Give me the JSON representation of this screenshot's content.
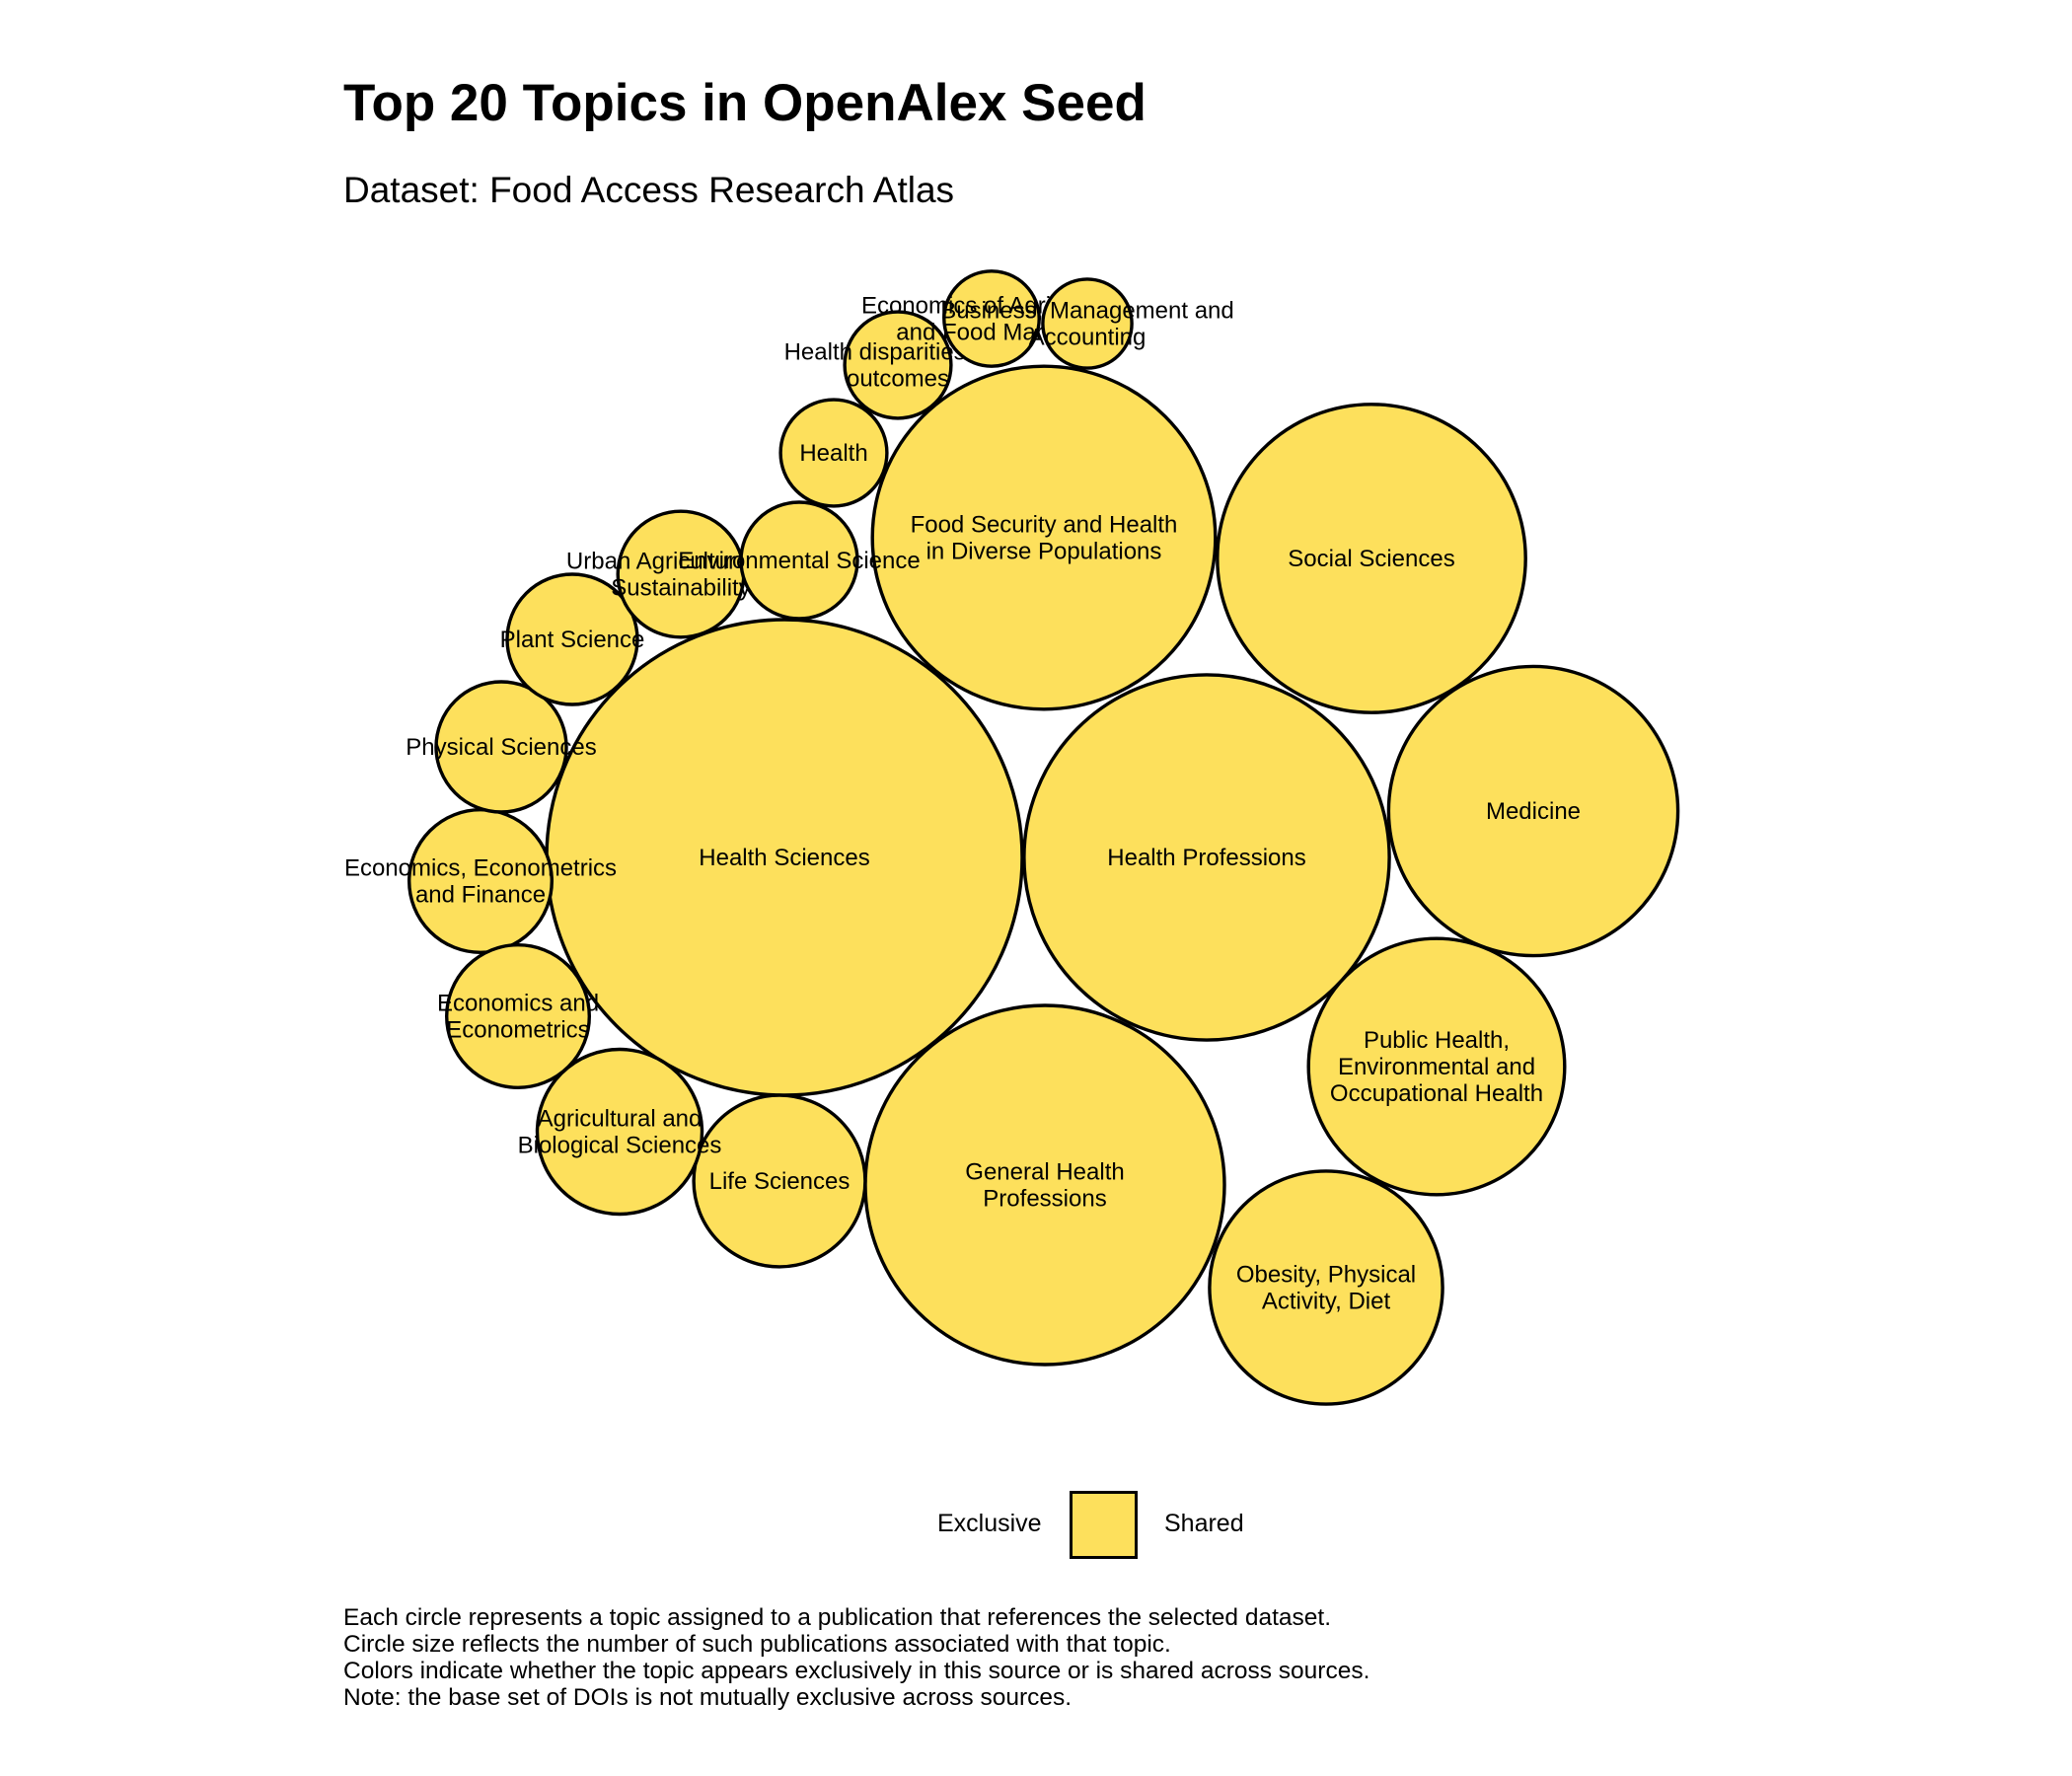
{
  "title": "Top 20 Topics in OpenAlex Seed",
  "subtitle": "Dataset: Food Access Research Atlas",
  "colors": {
    "shared": "#FDE05C",
    "exclusive": "#FDE05C",
    "outline": "#000000"
  },
  "legend": {
    "exclusive_label": "Exclusive",
    "shared_label": "Shared"
  },
  "caption": [
    "Each circle represents a topic assigned to a publication that references the selected dataset.",
    "Circle size reflects the number of such publications associated with that topic.",
    "Colors indicate whether the topic appears exclusively in this source or is shared across sources.",
    "Note: the base set of DOIs is not mutually exclusive across sources."
  ],
  "chart_data": {
    "type": "bubble",
    "title": "Top 20 Topics in OpenAlex Seed",
    "subtitle": "Dataset: Food Access Research Atlas",
    "legend_position": "bottom",
    "series": [
      {
        "name": "Exclusive",
        "values": []
      },
      {
        "name": "Shared",
        "values": [
          "Health Sciences",
          "Food Security and Health in Diverse Populations",
          "Health Professions",
          "General Health Professions",
          "Social Sciences",
          "Medicine",
          "Public Health, Environmental and Occupational Health",
          "Obesity, Physical Activity, Diet",
          "Life Sciences",
          "Agricultural and Biological Sciences",
          "Economics, Econometrics and Finance",
          "Economics and Econometrics",
          "Physical Sciences",
          "Plant Science",
          "Urban Agriculture and Sustainability",
          "Environmental Science",
          "Health",
          "Health disparities and outcomes",
          "Economics of Agriculture and Food Markets",
          "Business, Management and Accounting"
        ]
      }
    ],
    "topics": [
      {
        "name": "Health Sciences",
        "lines": [
          "Health Sciences"
        ],
        "value": 100,
        "group": "Shared"
      },
      {
        "name": "Food Security and Health in Diverse Populations",
        "lines": [
          "Food Security and Health",
          "in Diverse Populations"
        ],
        "value": 52,
        "group": "Shared"
      },
      {
        "name": "Health Professions",
        "lines": [
          "Health Professions"
        ],
        "value": 59,
        "group": "Shared"
      },
      {
        "name": "General Health Professions",
        "lines": [
          "General Health",
          "Professions"
        ],
        "value": 57,
        "group": "Shared"
      },
      {
        "name": "Social Sciences",
        "lines": [
          "Social Sciences"
        ],
        "value": 42,
        "group": "Shared"
      },
      {
        "name": "Medicine",
        "lines": [
          "Medicine"
        ],
        "value": 37,
        "group": "Shared"
      },
      {
        "name": "Public Health, Environmental and Occupational Health",
        "lines": [
          "Public Health,",
          "Environmental and",
          "Occupational Health"
        ],
        "value": 29,
        "group": "Shared"
      },
      {
        "name": "Obesity, Physical Activity, Diet",
        "lines": [
          "Obesity, Physical",
          "Activity, Diet"
        ],
        "value": 24,
        "group": "Shared"
      },
      {
        "name": "Life Sciences",
        "lines": [
          "Life Sciences"
        ],
        "value": 13,
        "group": "Shared"
      },
      {
        "name": "Agricultural and Biological Sciences",
        "lines": [
          "Agricultural and",
          "Biological Sciences"
        ],
        "value": 12,
        "group": "Shared"
      },
      {
        "name": "Economics, Econometrics and Finance",
        "lines": [
          "Economics, Econometrics",
          "and Finance"
        ],
        "value": 9,
        "group": "Shared"
      },
      {
        "name": "Economics and Econometrics",
        "lines": [
          "Economics and",
          "Econometrics"
        ],
        "value": 9,
        "group": "Shared"
      },
      {
        "name": "Physical Sciences",
        "lines": [
          "Physical Sciences"
        ],
        "value": 7.5,
        "group": "Shared"
      },
      {
        "name": "Plant Science",
        "lines": [
          "Plant Science"
        ],
        "value": 7.5,
        "group": "Shared"
      },
      {
        "name": "Urban Agriculture and Sustainability",
        "lines": [
          "Urban Agriculture and",
          "Sustainability"
        ],
        "value": 7,
        "group": "Shared"
      },
      {
        "name": "Environmental Science",
        "lines": [
          "Environmental Science"
        ],
        "value": 6,
        "group": "Shared"
      },
      {
        "name": "Health",
        "lines": [
          "Health"
        ],
        "value": 5,
        "group": "Shared"
      },
      {
        "name": "Health disparities and outcomes",
        "lines": [
          "Health disparities and",
          "outcomes"
        ],
        "value": 5,
        "group": "Shared"
      },
      {
        "name": "Economics of Agriculture and Food Markets",
        "lines": [
          "Economics of Agriculture",
          "and Food Markets"
        ],
        "value": 4,
        "group": "Shared"
      },
      {
        "name": "Business, Management and Accounting",
        "lines": [
          "Business, Management and",
          "Accounting"
        ],
        "value": 3.5,
        "group": "Shared"
      }
    ]
  }
}
